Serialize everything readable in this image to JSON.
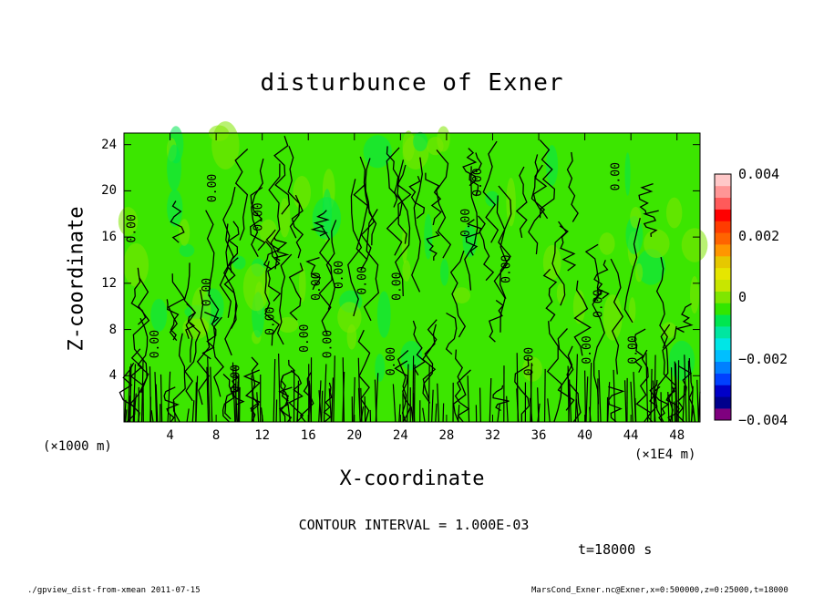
{
  "chart_data": {
    "type": "heatmap",
    "title": "disturbunce of Exner",
    "xlabel": "X-coordinate",
    "ylabel": "Z-coordinate",
    "x_ticks": [
      "4",
      "8",
      "12",
      "16",
      "20",
      "24",
      "28",
      "32",
      "36",
      "40",
      "44",
      "48"
    ],
    "y_ticks": [
      "4",
      "8",
      "12",
      "16",
      "20",
      "24"
    ],
    "xlim": [
      0,
      50
    ],
    "ylim": [
      0,
      25
    ],
    "x_unit_left": "(×1000 m)",
    "x_unit_right": "(×1E4 m)",
    "colorbar": {
      "labels": [
        "0.004",
        "0.002",
        "0",
        "−0.002",
        "−0.004"
      ],
      "range": [
        -0.004,
        0.004
      ],
      "colors": [
        "#7f007f",
        "#00008c",
        "#0000c8",
        "#0040ff",
        "#0080ff",
        "#00bfff",
        "#00e6e6",
        "#00e6a0",
        "#00e650",
        "#32e600",
        "#7fe600",
        "#c8e600",
        "#e6e600",
        "#e6c800",
        "#ff9600",
        "#ff6400",
        "#ff3c00",
        "#ff0000",
        "#ff5a5a",
        "#ff9696",
        "#ffc8c8"
      ]
    },
    "contour_interval": "CONTOUR INTERVAL = 1.000E-03",
    "contour_label": "0.00",
    "time": "t=18000 s"
  },
  "footer": {
    "left": "./gpview_dist-from-xmean  2011-07-15",
    "right": "MarsCond_Exner.nc@Exner,x=0:500000,z=0:25000,t=18000"
  }
}
